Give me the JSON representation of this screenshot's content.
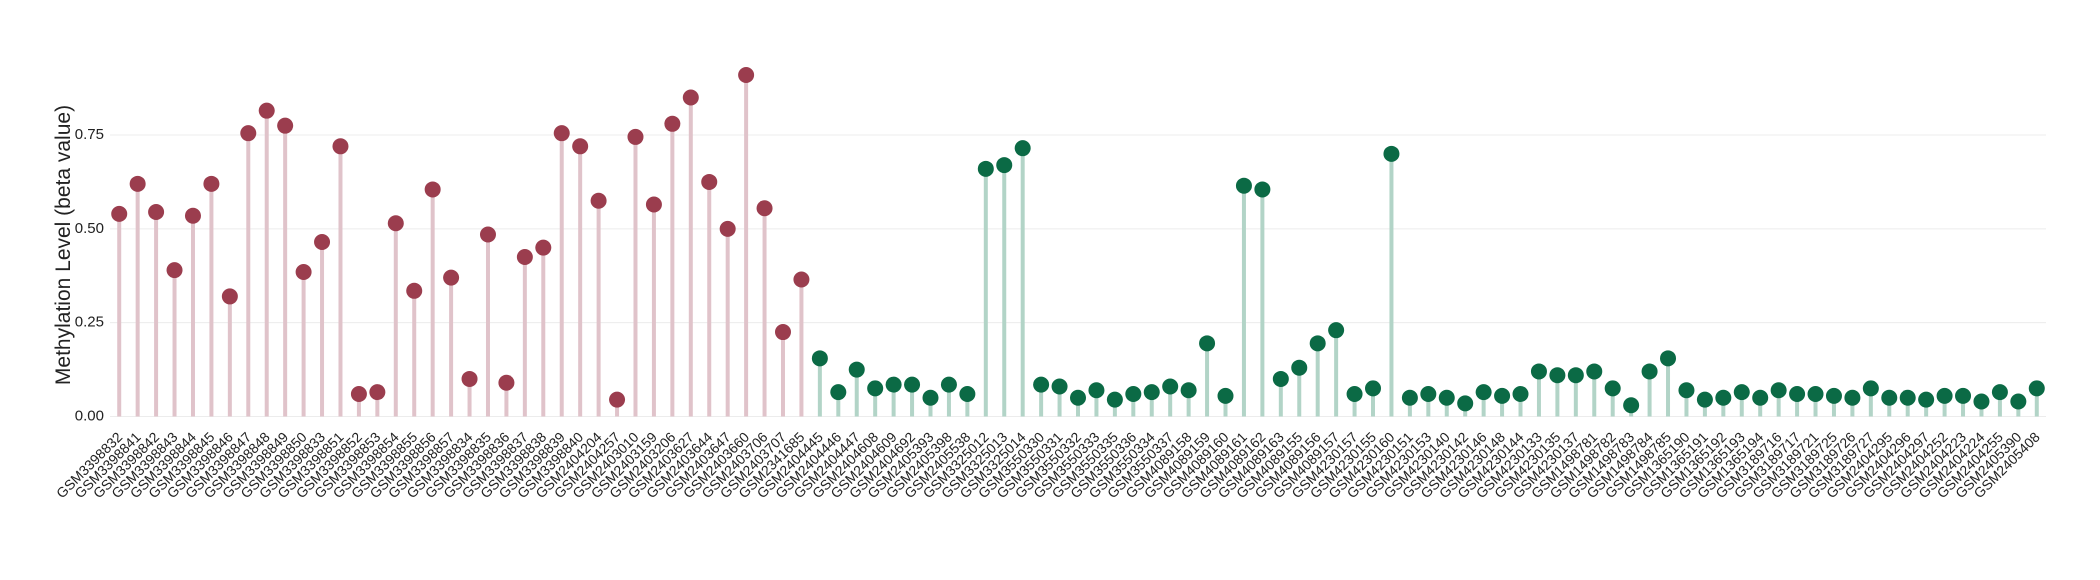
{
  "chart_data": {
    "type": "lollipop",
    "ylabel": "Methylation Level (beta value)",
    "categories": [
      "GSM3398832",
      "GSM3398841",
      "GSM3398842",
      "GSM3398843",
      "GSM3398844",
      "GSM3398845",
      "GSM3398846",
      "GSM3398847",
      "GSM3398848",
      "GSM3398849",
      "GSM3398850",
      "GSM3398833",
      "GSM3398851",
      "GSM3398852",
      "GSM3398853",
      "GSM3398854",
      "GSM3398855",
      "GSM3398856",
      "GSM3398857",
      "GSM3398834",
      "GSM3398835",
      "GSM3398836",
      "GSM3398837",
      "GSM3398838",
      "GSM3398839",
      "GSM3398840",
      "GSM2404204",
      "GSM2404257",
      "GSM2403010",
      "GSM2403159",
      "GSM2403206",
      "GSM2403627",
      "GSM2403644",
      "GSM2403647",
      "GSM2403660",
      "GSM2403706",
      "GSM2403707",
      "GSM2341685",
      "GSM2404445",
      "GSM2404446",
      "GSM2404447",
      "GSM2404608",
      "GSM2404609",
      "GSM2404692",
      "GSM2405393",
      "GSM2405398",
      "GSM2405538",
      "GSM3325012",
      "GSM3325013",
      "GSM3325014",
      "GSM3550330",
      "GSM3550331",
      "GSM3550332",
      "GSM3550333",
      "GSM3550335",
      "GSM3550336",
      "GSM3550334",
      "GSM3550337",
      "GSM4089158",
      "GSM4089159",
      "GSM4089160",
      "GSM4089161",
      "GSM4089162",
      "GSM4089163",
      "GSM4089155",
      "GSM4089156",
      "GSM4089157",
      "GSM4230157",
      "GSM4230155",
      "GSM4230160",
      "GSM4230151",
      "GSM4230153",
      "GSM4230140",
      "GSM4230142",
      "GSM4230146",
      "GSM4230148",
      "GSM4230144",
      "GSM4230133",
      "GSM4230135",
      "GSM4230137",
      "GSM1498781",
      "GSM1498782",
      "GSM1498783",
      "GSM1498784",
      "GSM1498785",
      "GSM1365190",
      "GSM1365191",
      "GSM1365192",
      "GSM1365193",
      "GSM1365194",
      "GSM3189716",
      "GSM3189717",
      "GSM3189721",
      "GSM3189725",
      "GSM3189726",
      "GSM3189727",
      "GSM2404295",
      "GSM2404296",
      "GSM2404297",
      "GSM2404252",
      "GSM2404223",
      "GSM2404224",
      "GSM2404255",
      "GSM2405390",
      "GSM2405408"
    ],
    "series": [
      {
        "color": "#9b3d4e",
        "stem_color": "#e0c3ca",
        "values": [
          0.54,
          0.62,
          0.545,
          0.39,
          0.535,
          0.62,
          0.32,
          0.755,
          0.815,
          0.775,
          0.385,
          0.465,
          0.72,
          0.06,
          0.065,
          0.515,
          0.335,
          0.605,
          0.37,
          0.1,
          0.485,
          0.09,
          0.425,
          0.45,
          0.755,
          0.72,
          0.575,
          0.045,
          0.745,
          0.565,
          0.78,
          0.85,
          0.625,
          0.5,
          0.91,
          0.555,
          0.225,
          0.365,
          null,
          null,
          null,
          null,
          null,
          null,
          null,
          null,
          null,
          null,
          null,
          null,
          null,
          null,
          null,
          null,
          null,
          null,
          null,
          null,
          null,
          null,
          null,
          null,
          null,
          null,
          null,
          null,
          null,
          null,
          null,
          null,
          null,
          null,
          null,
          null,
          null,
          null,
          null,
          null,
          null,
          null,
          null,
          null,
          null,
          null,
          null,
          null,
          null,
          null,
          null,
          null,
          null,
          null,
          null,
          null,
          null,
          null,
          null,
          null,
          null,
          null,
          null,
          null,
          null,
          null,
          null
        ]
      },
      {
        "color": "#0b6a45",
        "stem_color": "#b2d4c7",
        "values": [
          null,
          null,
          null,
          null,
          null,
          null,
          null,
          null,
          null,
          null,
          null,
          null,
          null,
          null,
          null,
          null,
          null,
          null,
          null,
          null,
          null,
          null,
          null,
          null,
          null,
          null,
          null,
          null,
          null,
          null,
          null,
          null,
          null,
          null,
          null,
          null,
          null,
          null,
          0.155,
          0.065,
          0.125,
          0.075,
          0.085,
          0.085,
          0.05,
          0.085,
          0.06,
          0.66,
          0.67,
          0.715,
          0.085,
          0.08,
          0.05,
          0.07,
          0.045,
          0.06,
          0.065,
          0.08,
          0.07,
          0.195,
          0.055,
          0.615,
          0.605,
          0.1,
          0.13,
          0.195,
          0.23,
          0.06,
          0.075,
          0.7,
          0.05,
          0.06,
          0.05,
          0.035,
          0.065,
          0.055,
          0.06,
          0.12,
          0.11,
          0.11,
          0.12,
          0.075,
          0.03,
          0.12,
          0.155,
          0.07,
          0.045,
          0.05,
          0.065,
          0.05,
          0.07,
          0.06,
          0.06,
          0.055,
          0.05,
          0.075,
          0.05,
          0.05,
          0.045,
          0.055,
          0.055,
          0.04,
          0.065,
          0.04,
          0.075
        ]
      }
    ],
    "ylim": [
      -0.02,
      0.95
    ],
    "yticks": [
      {
        "value": 0,
        "label": "0.00"
      },
      {
        "value": 0.25,
        "label": "0.25"
      },
      {
        "value": 0.5,
        "label": "0.50"
      },
      {
        "value": 0.75,
        "label": "0.75"
      }
    ],
    "grid": true
  }
}
